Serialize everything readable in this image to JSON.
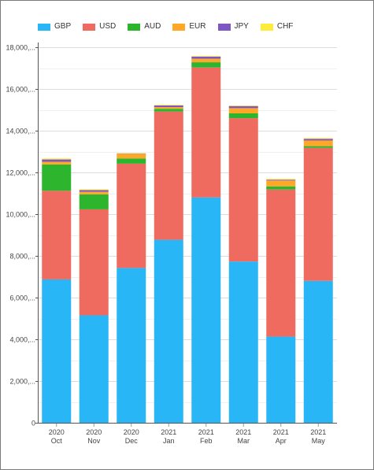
{
  "chart_data": {
    "type": "bar",
    "stacked": true,
    "title": "",
    "xlabel": "",
    "ylabel": "",
    "ylim": [
      0,
      18000
    ],
    "y_ticks": [
      0,
      2000,
      4000,
      6000,
      8000,
      10000,
      12000,
      14000,
      16000,
      18000
    ],
    "y_tick_labels": [
      "0",
      "2,000,...",
      "4,000,...",
      "6,000,...",
      "8,000,...",
      "10,000,...",
      "12,000,...",
      "14,000,...",
      "16,000,...",
      "18,000,..."
    ],
    "grid": true,
    "legend_position": "top-left",
    "categories": [
      {
        "year": "2020",
        "month": "Oct"
      },
      {
        "year": "2020",
        "month": "Nov"
      },
      {
        "year": "2020",
        "month": "Dec"
      },
      {
        "year": "2021",
        "month": "Jan"
      },
      {
        "year": "2021",
        "month": "Feb"
      },
      {
        "year": "2021",
        "month": "Mar"
      },
      {
        "year": "2021",
        "month": "Apr"
      },
      {
        "year": "2021",
        "month": "May"
      }
    ],
    "series": [
      {
        "name": "GBP",
        "color": "#29b6f6",
        "values": [
          6870,
          5150,
          7420,
          8770,
          10800,
          7730,
          4130,
          6800
        ]
      },
      {
        "name": "USD",
        "color": "#ef6b5f",
        "values": [
          4250,
          5080,
          5000,
          6150,
          6230,
          6870,
          7050,
          6380
        ]
      },
      {
        "name": "AUD",
        "color": "#2db52d",
        "values": [
          1260,
          720,
          250,
          130,
          250,
          230,
          150,
          80
        ]
      },
      {
        "name": "EUR",
        "color": "#ffa726",
        "values": [
          130,
          120,
          210,
          80,
          170,
          250,
          280,
          270
        ]
      },
      {
        "name": "JPY",
        "color": "#7e57c2",
        "values": [
          110,
          80,
          20,
          80,
          100,
          100,
          40,
          80
        ]
      },
      {
        "name": "CHF",
        "color": "#ffeb3b",
        "values": [
          50,
          40,
          30,
          30,
          30,
          30,
          40,
          40
        ]
      }
    ]
  }
}
